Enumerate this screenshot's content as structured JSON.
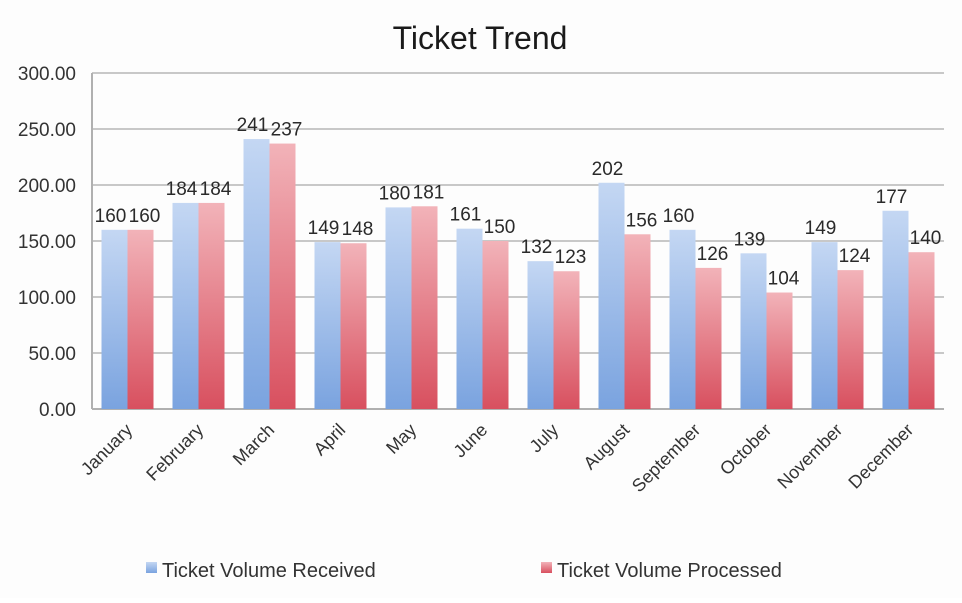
{
  "chart_data": {
    "type": "bar",
    "title": "Ticket Trend",
    "xlabel": "",
    "ylabel": "",
    "ylim": [
      0,
      300
    ],
    "yticks": [
      "0.00",
      "50.00",
      "100.00",
      "150.00",
      "200.00",
      "250.00",
      "300.00"
    ],
    "grid": true,
    "legend_position": "bottom",
    "categories": [
      "January",
      "February",
      "March",
      "April",
      "May",
      "June",
      "July",
      "August",
      "September",
      "October",
      "November",
      "December"
    ],
    "series": [
      {
        "name": "Ticket Volume Received",
        "color": "#8fb3e6",
        "values": [
          160,
          184,
          241,
          149,
          180,
          161,
          132,
          202,
          160,
          139,
          149,
          177
        ]
      },
      {
        "name": "Ticket Volume Processed",
        "color": "#e0707c",
        "values": [
          160,
          184,
          237,
          148,
          181,
          150,
          123,
          156,
          126,
          104,
          124,
          140
        ]
      }
    ]
  }
}
